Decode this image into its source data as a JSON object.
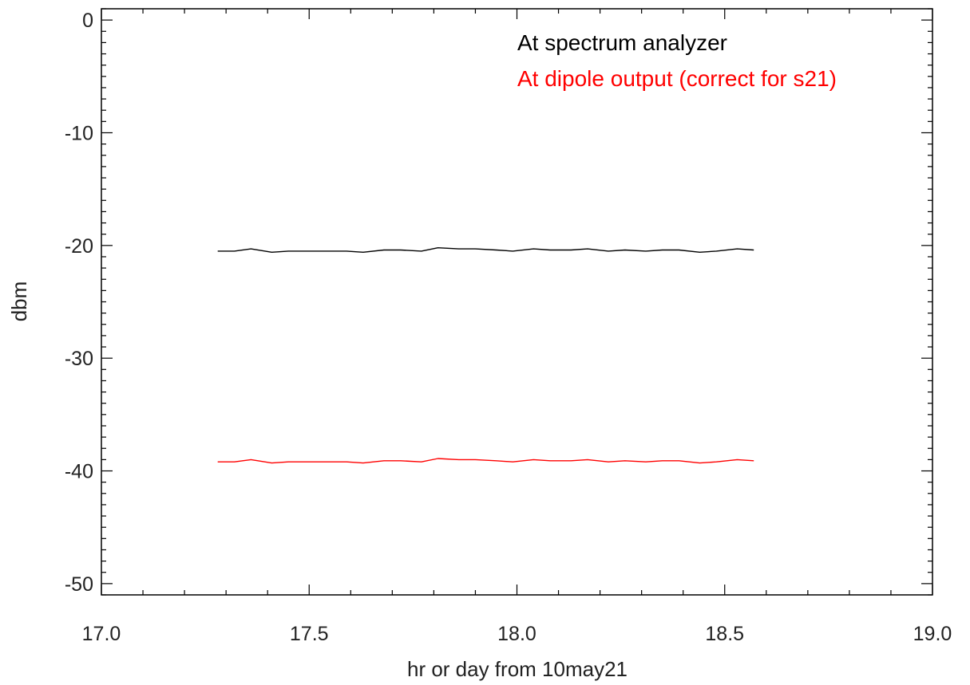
{
  "chart_data": {
    "type": "line",
    "title": "",
    "xlabel": "hr or day from 10may21",
    "ylabel": "dbm",
    "xlim": [
      17.0,
      19.0
    ],
    "ylim": [
      -51.0,
      1.0
    ],
    "x_ticks": [
      17.0,
      17.5,
      18.0,
      18.5,
      19.0
    ],
    "x_tick_labels": [
      "17.0",
      "17.5",
      "18.0",
      "18.5",
      "19.0"
    ],
    "x_minor_step": 0.1,
    "y_ticks": [
      0,
      -10,
      -20,
      -30,
      -40,
      -50
    ],
    "y_tick_labels": [
      "0",
      "-10",
      "-20",
      "-30",
      "-40",
      "-50"
    ],
    "y_minor_step": 1,
    "grid": false,
    "legend_position": "top-right",
    "series": [
      {
        "name": "At spectrum analyzer",
        "color": "#000000",
        "x": [
          17.28,
          17.32,
          17.36,
          17.41,
          17.45,
          17.5,
          17.54,
          17.59,
          17.63,
          17.68,
          17.72,
          17.77,
          17.81,
          17.86,
          17.9,
          17.95,
          17.99,
          18.04,
          18.08,
          18.13,
          18.17,
          18.22,
          18.26,
          18.31,
          18.35,
          18.39,
          18.44,
          18.48,
          18.53,
          18.57
        ],
        "y": [
          -20.5,
          -20.5,
          -20.3,
          -20.6,
          -20.5,
          -20.5,
          -20.5,
          -20.5,
          -20.6,
          -20.4,
          -20.4,
          -20.5,
          -20.2,
          -20.3,
          -20.3,
          -20.4,
          -20.5,
          -20.3,
          -20.4,
          -20.4,
          -20.3,
          -20.5,
          -20.4,
          -20.5,
          -20.4,
          -20.4,
          -20.6,
          -20.5,
          -20.3,
          -20.4
        ]
      },
      {
        "name": "At dipole output (correct for s21)",
        "color": "#ff0000",
        "x": [
          17.28,
          17.32,
          17.36,
          17.41,
          17.45,
          17.5,
          17.54,
          17.59,
          17.63,
          17.68,
          17.72,
          17.77,
          17.81,
          17.86,
          17.9,
          17.95,
          17.99,
          18.04,
          18.08,
          18.13,
          18.17,
          18.22,
          18.26,
          18.31,
          18.35,
          18.39,
          18.44,
          18.48,
          18.53,
          18.57
        ],
        "y": [
          -39.2,
          -39.2,
          -39.0,
          -39.3,
          -39.2,
          -39.2,
          -39.2,
          -39.2,
          -39.3,
          -39.1,
          -39.1,
          -39.2,
          -38.9,
          -39.0,
          -39.0,
          -39.1,
          -39.2,
          -39.0,
          -39.1,
          -39.1,
          -39.0,
          -39.2,
          -39.1,
          -39.2,
          -39.1,
          -39.1,
          -39.3,
          -39.2,
          -39.0,
          -39.1
        ]
      }
    ]
  }
}
